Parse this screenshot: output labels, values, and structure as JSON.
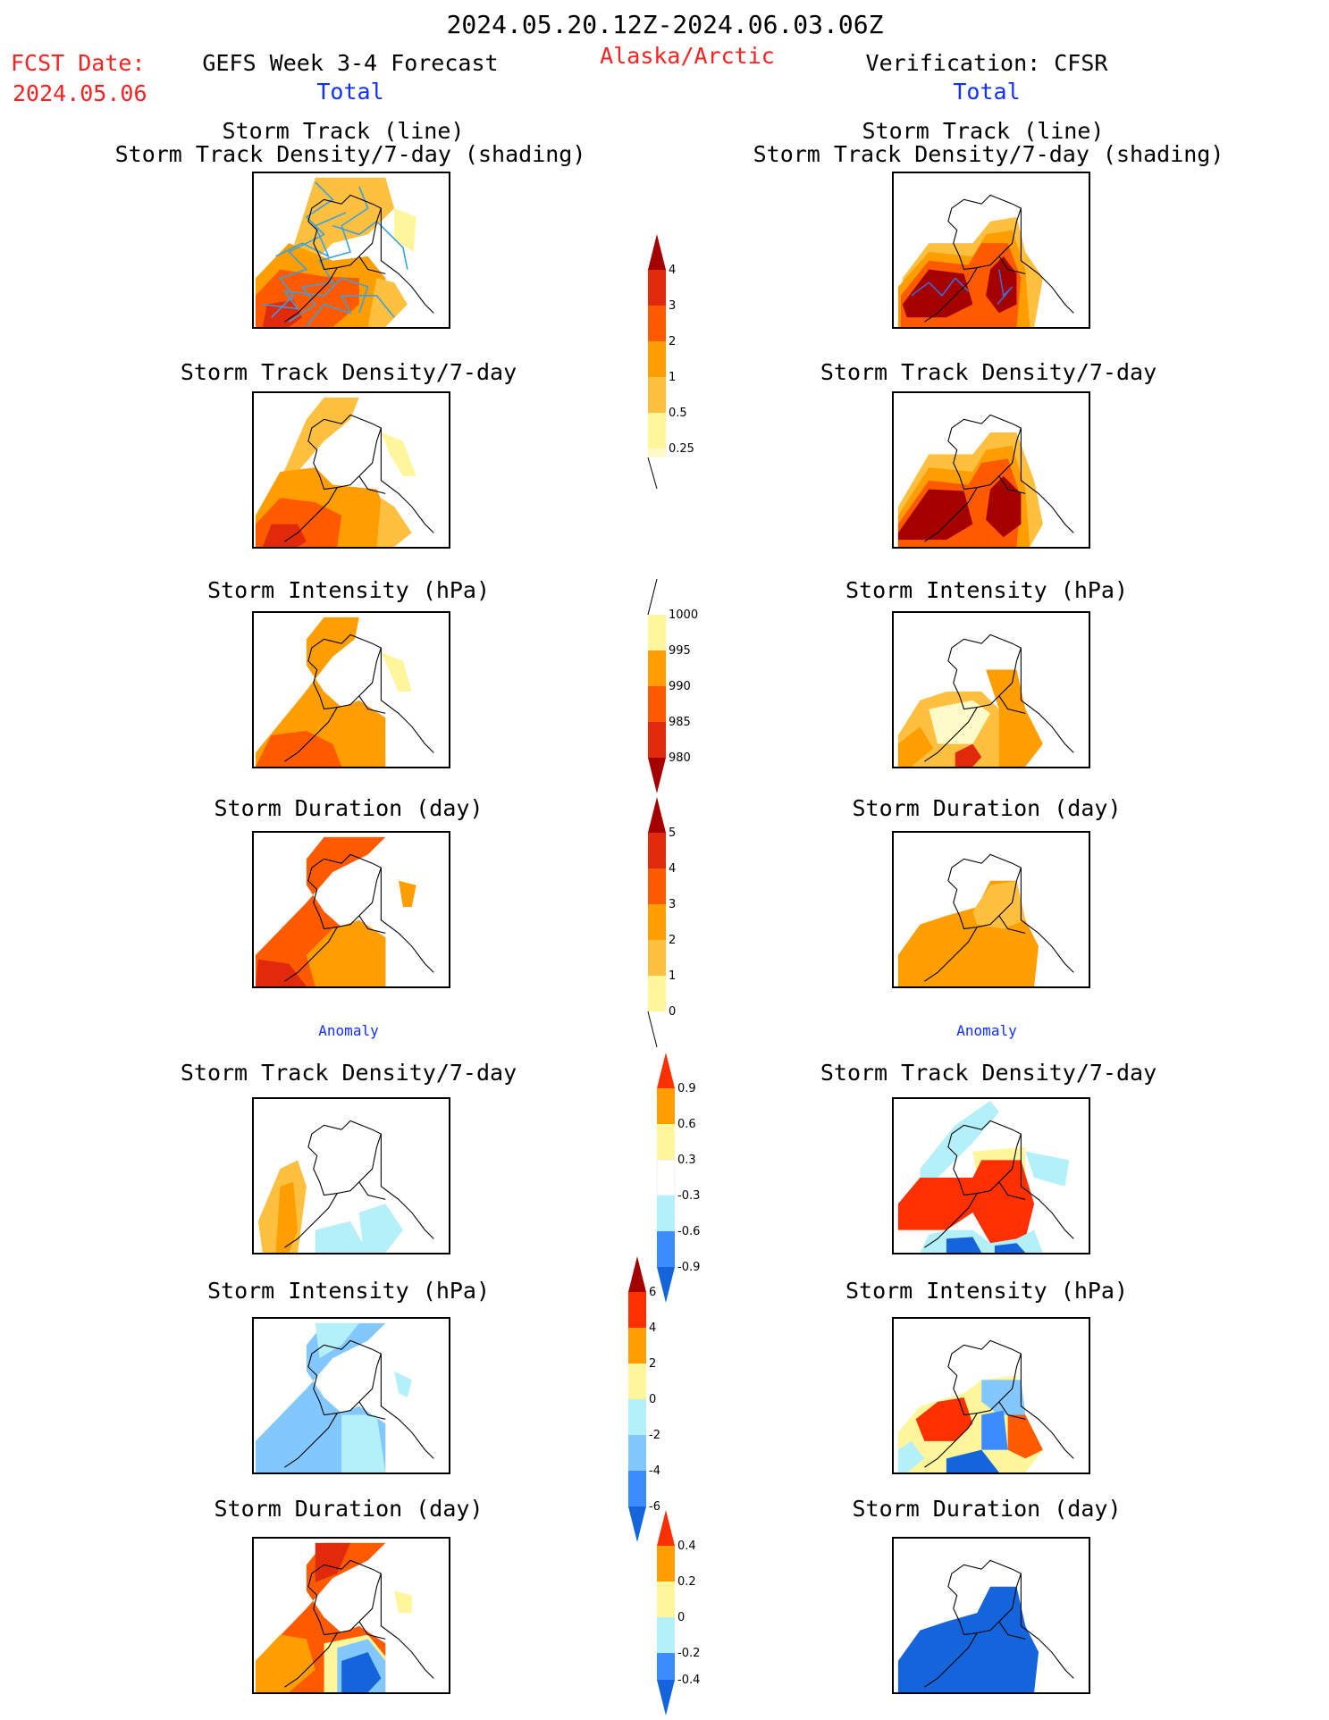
{
  "header": {
    "period": "2024.05.20.12Z-2024.06.03.06Z",
    "fcst_label": "FCST Date:",
    "fcst_date": "2024.05.06",
    "model_title": "GEFS Week 3-4 Forecast",
    "region": "Alaska/Arctic",
    "verification": "Verification: CFSR"
  },
  "sections": {
    "total_left": "Total",
    "total_right": "Total",
    "anomaly_left": "Anomaly",
    "anomaly_right": "Anomaly"
  },
  "panel_titles": {
    "track_line": "Storm Track (line)",
    "track_density_shading": "Storm Track Density/7-day (shading)",
    "track_density": "Storm Track Density/7-day",
    "intensity": "Storm Intensity (hPa)",
    "duration": "Storm Duration (day)"
  },
  "colorbars": {
    "density": [
      "4",
      "3",
      "2",
      "1",
      "0.5",
      "0.25"
    ],
    "intensity": [
      "1000",
      "995",
      "990",
      "985",
      "980"
    ],
    "duration": [
      "5",
      "4",
      "3",
      "2",
      "1",
      "0"
    ],
    "density_anom": [
      "0.9",
      "0.6",
      "0.3",
      "-0.3",
      "-0.6",
      "-0.9"
    ],
    "intensity_anom": [
      "6",
      "4",
      "2",
      "0",
      "-2",
      "-4",
      "-6"
    ],
    "duration_anom": [
      "0.4",
      "0.2",
      "0",
      "-0.2",
      "-0.4"
    ]
  },
  "colors": {
    "darkred": "#a50000",
    "red": "#e12a0c",
    "orangered": "#ff5a00",
    "orange": "#ff9e00",
    "lightorange": "#ffc040",
    "yellow": "#fff59a",
    "paleyellow": "#fffbc8",
    "lightblue": "#b4f0fa",
    "skyblue": "#82c8ff",
    "blue": "#3c8cff",
    "deepblue": "#1464dc"
  }
}
